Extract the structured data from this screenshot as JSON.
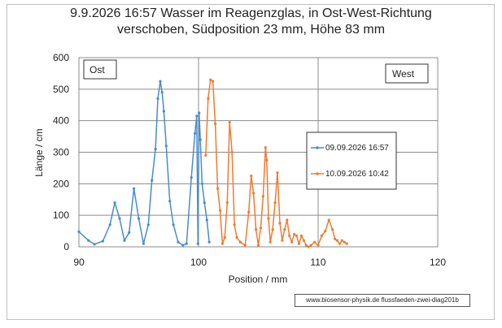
{
  "title_line1": "9.9.2026 16:57 Wasser im Reagenzglas, in Ost-West-Richtung",
  "title_line2": "verschoben, Südposition 23 mm, Höhe 83 mm",
  "label_ost": "Ost",
  "label_west": "West",
  "credit": "www.biosensor-physik.de  flussfaeden-zwei-diag201b",
  "chart_data": {
    "type": "line",
    "title": "9.9.2026 16:57 Wasser im Reagenzglas, in Ost-West-Richtung verschoben, Südposition 23 mm, Höhe 83 mm",
    "xlabel": "Position / mm",
    "ylabel": "Länge / cm",
    "xlim": [
      90,
      120
    ],
    "ylim": [
      0,
      600
    ],
    "xticks": [
      90,
      100,
      110,
      120
    ],
    "yticks": [
      0,
      100,
      200,
      300,
      400,
      500,
      600
    ],
    "grid": true,
    "legend_position": "right",
    "series": [
      {
        "name": "09.09.2026 16:57",
        "color": "#4a8cc8",
        "x": [
          90.0,
          90.8,
          91.3,
          92.0,
          92.6,
          93.0,
          93.4,
          93.8,
          94.2,
          94.6,
          95.0,
          95.4,
          95.8,
          96.1,
          96.4,
          96.6,
          96.8,
          96.95,
          97.1,
          97.3,
          97.6,
          97.9,
          98.3,
          98.7,
          99.0,
          99.4,
          99.7,
          99.85,
          99.95,
          100.05,
          100.15,
          100.3,
          100.5,
          100.7,
          100.9
        ],
        "y": [
          48,
          20,
          8,
          18,
          70,
          140,
          90,
          20,
          45,
          185,
          90,
          10,
          70,
          210,
          310,
          470,
          525,
          490,
          430,
          320,
          145,
          70,
          15,
          5,
          10,
          220,
          360,
          415,
          10,
          425,
          340,
          200,
          140,
          85,
          15
        ]
      },
      {
        "name": "10.09.2026 10:42",
        "color": "#ed7d31",
        "x": [
          100.6,
          100.8,
          101.0,
          101.2,
          101.4,
          101.6,
          101.8,
          102.0,
          102.2,
          102.4,
          102.6,
          102.8,
          103.0,
          103.2,
          103.5,
          103.9,
          104.2,
          104.4,
          104.6,
          104.8,
          105.0,
          105.2,
          105.4,
          105.6,
          105.7,
          105.85,
          106.0,
          106.2,
          106.4,
          106.6,
          106.8,
          107.0,
          107.2,
          107.4,
          107.6,
          107.8,
          108.0,
          108.2,
          108.4,
          108.6,
          108.8,
          109.0,
          109.2,
          109.4,
          109.7,
          110.0,
          110.3,
          110.6,
          110.9,
          111.2,
          111.4,
          111.6,
          111.8,
          112.0,
          112.2,
          112.4
        ],
        "y": [
          290,
          470,
          530,
          525,
          390,
          185,
          115,
          10,
          30,
          140,
          395,
          300,
          70,
          30,
          15,
          5,
          110,
          225,
          170,
          55,
          5,
          60,
          160,
          315,
          275,
          90,
          15,
          55,
          140,
          235,
          75,
          20,
          55,
          85,
          35,
          15,
          40,
          35,
          10,
          35,
          20,
          5,
          0,
          5,
          15,
          5,
          35,
          50,
          85,
          55,
          25,
          20,
          10,
          20,
          15,
          10
        ]
      }
    ]
  }
}
